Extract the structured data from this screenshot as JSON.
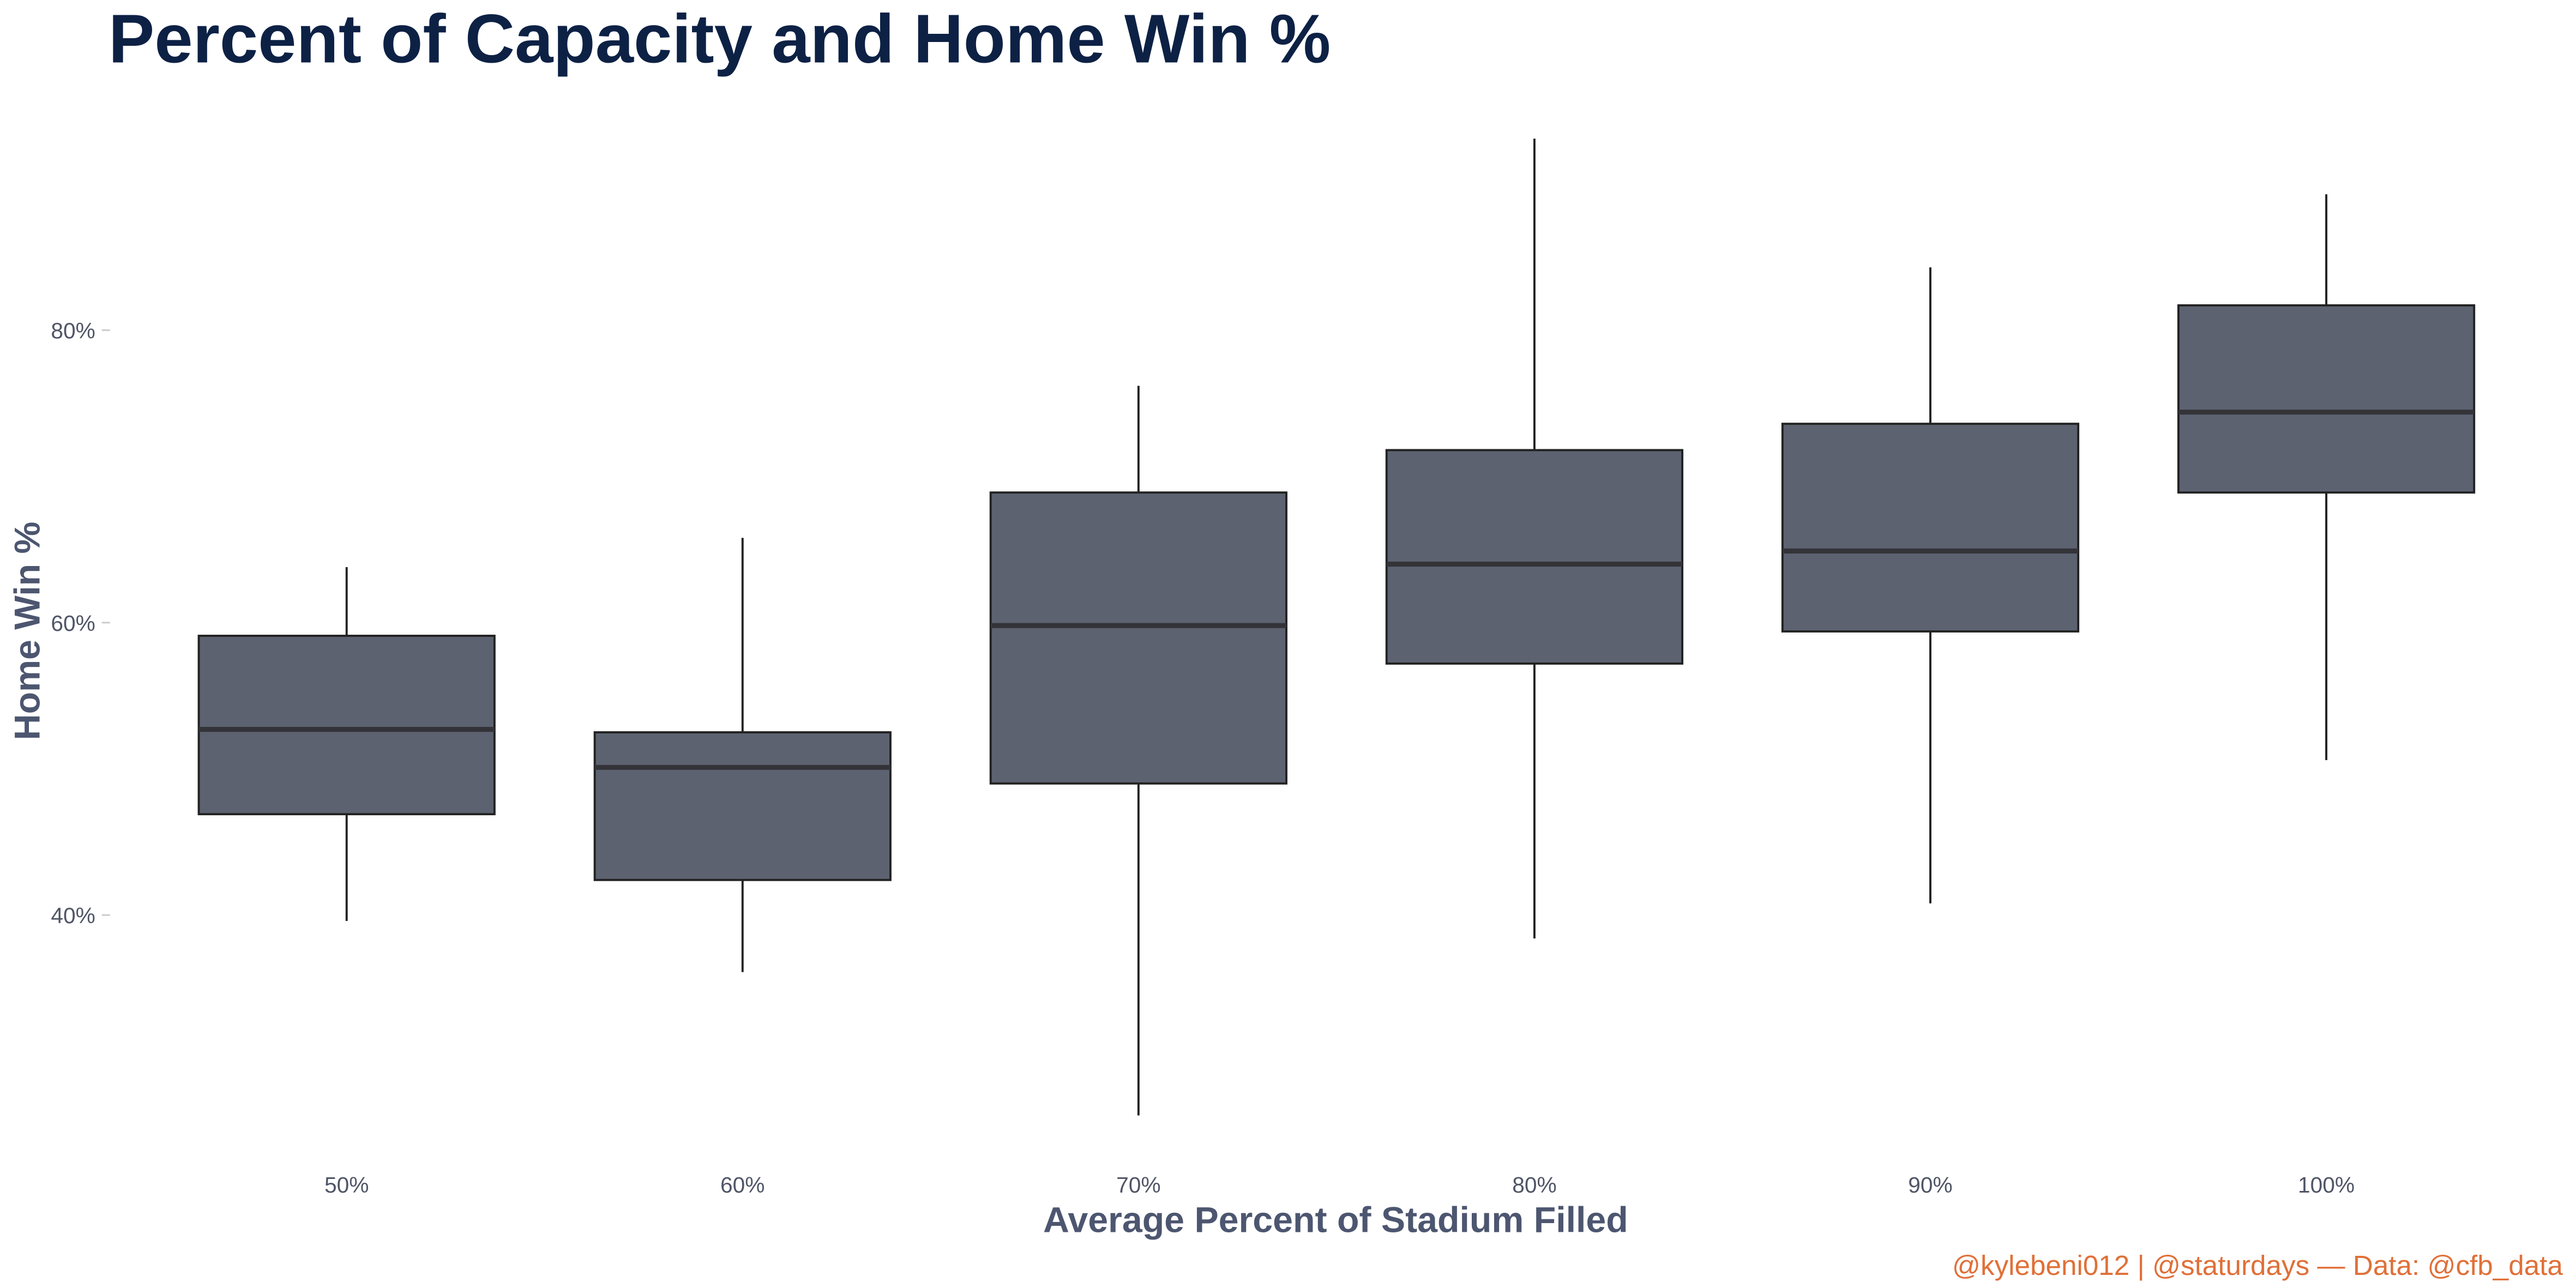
{
  "chart_data": {
    "type": "boxplot",
    "title": "Percent of Capacity and Home Win %",
    "xlabel": "Average Percent of Stadium Filled",
    "ylabel": "Home Win %",
    "caption": "@kylebeni012 | @staturdays — Data: @cfb_data",
    "categories": [
      "50%",
      "60%",
      "70%",
      "80%",
      "90%",
      "100%"
    ],
    "yticks": [
      40,
      60,
      80
    ],
    "ytick_labels": [
      "40%",
      "60%",
      "80%"
    ],
    "ylim": [
      23,
      96
    ],
    "grid": false,
    "boxes": [
      {
        "category": "50%",
        "min": 39.6,
        "q1": 46.9,
        "median": 52.7,
        "q3": 59.1,
        "max": 63.8
      },
      {
        "category": "60%",
        "min": 36.1,
        "q1": 42.4,
        "median": 50.1,
        "q3": 52.5,
        "max": 65.8
      },
      {
        "category": "70%",
        "min": 26.3,
        "q1": 49.0,
        "median": 59.8,
        "q3": 68.9,
        "max": 76.2
      },
      {
        "category": "80%",
        "min": 38.4,
        "q1": 57.2,
        "median": 64.0,
        "q3": 71.8,
        "max": 93.1
      },
      {
        "category": "90%",
        "min": 40.8,
        "q1": 59.4,
        "median": 64.9,
        "q3": 73.6,
        "max": 84.3
      },
      {
        "category": "100%",
        "min": 50.6,
        "q1": 68.9,
        "median": 74.4,
        "q3": 81.7,
        "max": 89.3
      }
    ],
    "colors": {
      "box_fill": "#5c6270",
      "box_outline": "#222222",
      "median": "#333338",
      "title": "#0d2145",
      "axis_label": "#4d5670",
      "caption": "#e07038"
    }
  }
}
